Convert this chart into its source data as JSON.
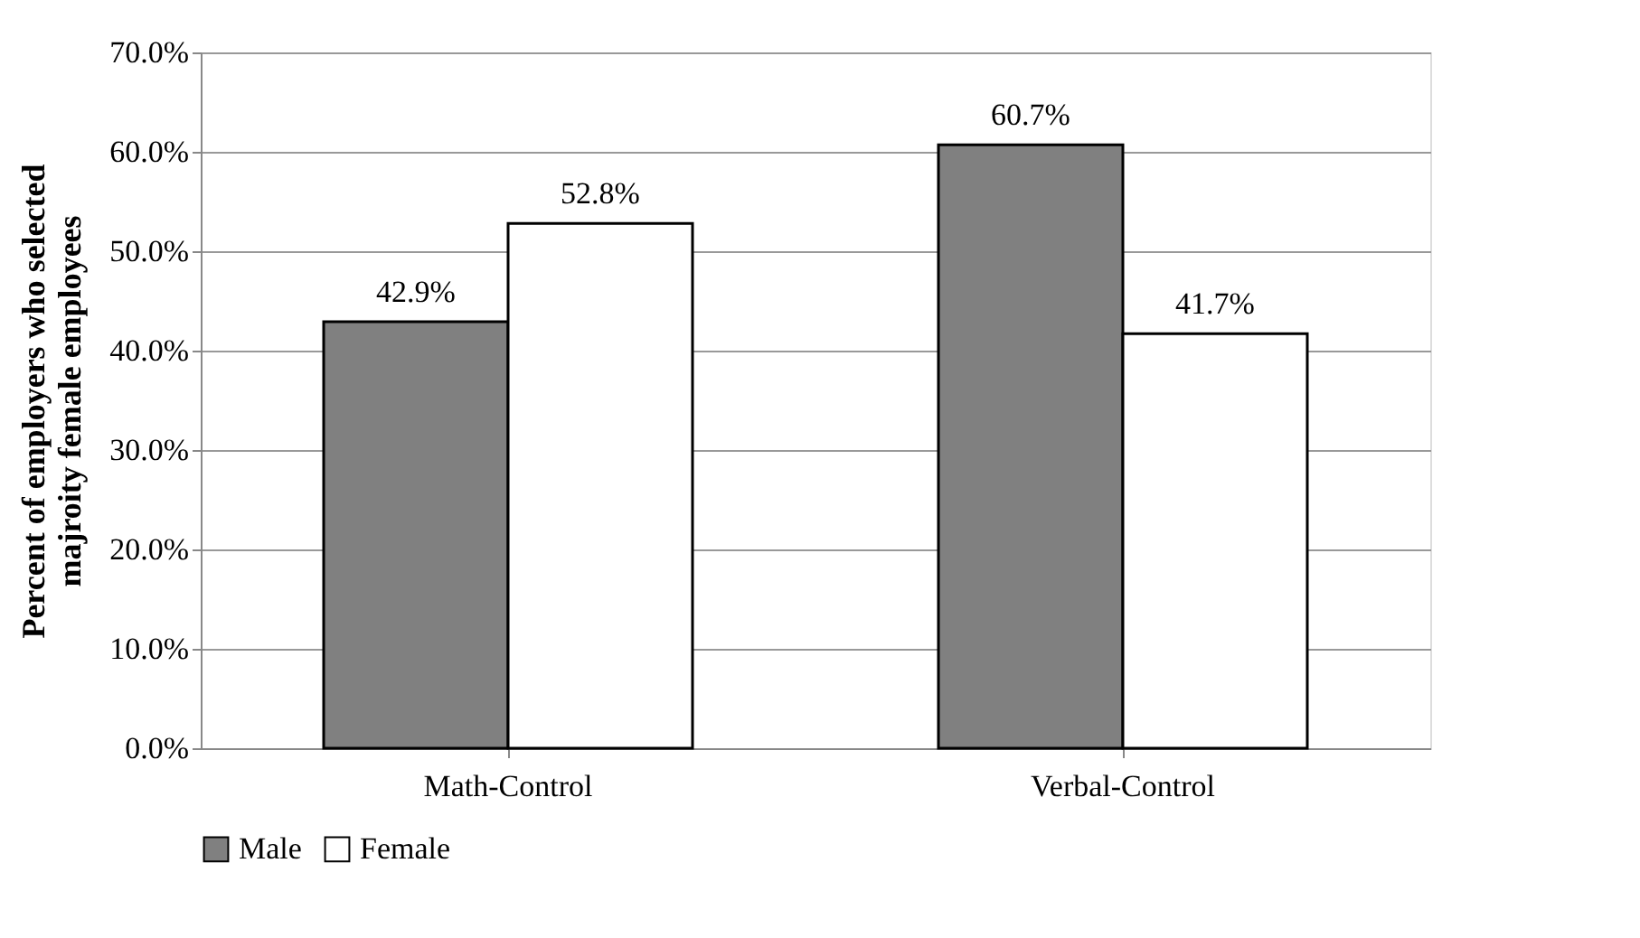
{
  "chart_data": {
    "type": "bar",
    "categories": [
      "Math-Control",
      "Verbal-Control"
    ],
    "series": [
      {
        "name": "Male",
        "color": "#808080",
        "values": [
          42.9,
          60.7
        ],
        "value_labels": [
          "42.9%",
          "60.7%"
        ]
      },
      {
        "name": "Female",
        "color": "#ffffff",
        "values": [
          52.8,
          41.7
        ],
        "value_labels": [
          "52.8%",
          "41.7%"
        ]
      }
    ],
    "ylabel": "Percent of employers who selected\nmajroity female employees",
    "ylim": [
      0,
      70
    ],
    "yticks": [
      {
        "value": 0,
        "label": "0.0%"
      },
      {
        "value": 10,
        "label": "10.0%"
      },
      {
        "value": 20,
        "label": "20.0%"
      },
      {
        "value": 30,
        "label": "30.0%"
      },
      {
        "value": 40,
        "label": "40.0%"
      },
      {
        "value": 50,
        "label": "50.0%"
      },
      {
        "value": 60,
        "label": "60.0%"
      },
      {
        "value": 70,
        "label": "70.0%"
      }
    ],
    "grid": "y",
    "legend": "bottom"
  }
}
